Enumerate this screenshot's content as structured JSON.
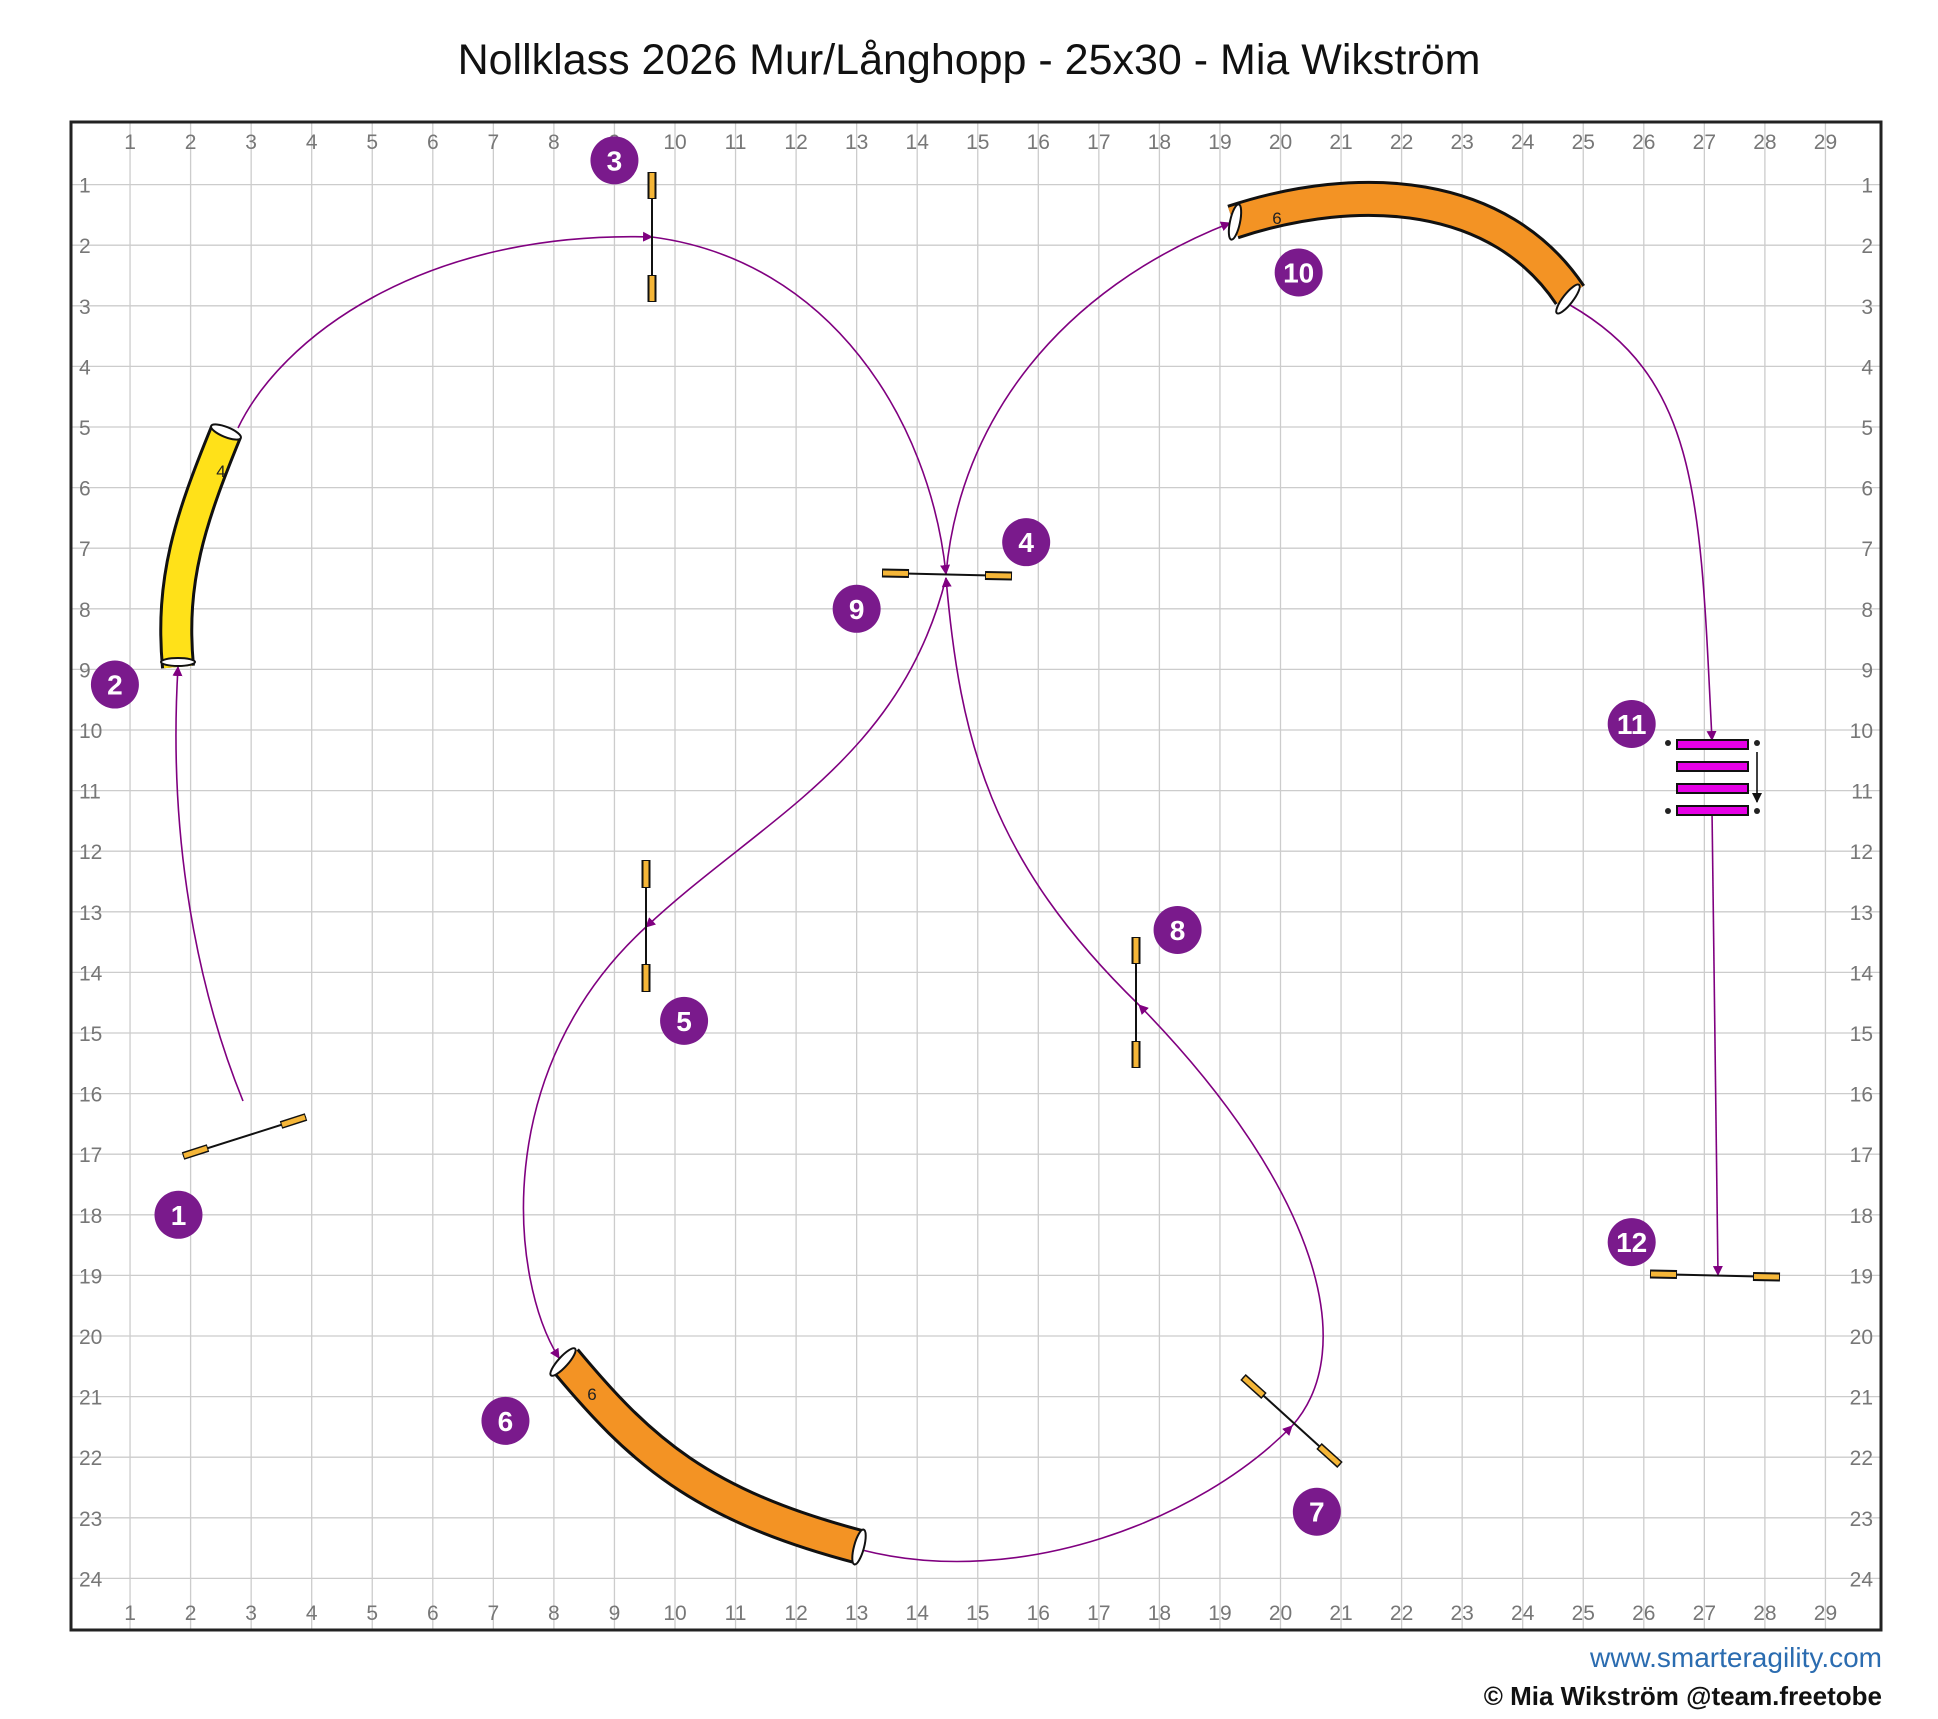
{
  "title": "Nollklass 2026 Mur/Långhopp - 25x30 - Mia Wikström",
  "footer": {
    "website": "www.smarteragility.com",
    "copyright": "© Mia Wikström @team.freetobe"
  },
  "grid": {
    "x_labels": [
      "1",
      "2",
      "3",
      "4",
      "5",
      "6",
      "7",
      "8",
      "9",
      "10",
      "11",
      "12",
      "13",
      "14",
      "15",
      "16",
      "17",
      "18",
      "19",
      "20",
      "21",
      "22",
      "23",
      "24",
      "25",
      "26",
      "27",
      "28",
      "29"
    ],
    "y_labels": [
      "1",
      "2",
      "3",
      "4",
      "5",
      "6",
      "7",
      "8",
      "9",
      "10",
      "11",
      "12",
      "13",
      "14",
      "15",
      "16",
      "17",
      "18",
      "19",
      "20",
      "21",
      "22",
      "23",
      "24"
    ]
  },
  "colors": {
    "path": "#800080",
    "badge": "#7a1a8c",
    "tunnel_yellow": "#ffe119",
    "tunnel_orange": "#f39324",
    "jump_bar": "#f5b638",
    "weave": "#e600e6",
    "grid": "#cccccc"
  },
  "tunnels": [
    {
      "id": "tunnel-2",
      "label": "4",
      "color": "yellow"
    },
    {
      "id": "tunnel-6",
      "label": "6",
      "color": "orange"
    },
    {
      "id": "tunnel-10",
      "label": "6",
      "color": "orange"
    }
  ],
  "numbers": [
    {
      "label": "1",
      "x": 1.8,
      "y": 18.0
    },
    {
      "label": "2",
      "x": 0.75,
      "y": 9.25
    },
    {
      "label": "3",
      "x": 9.0,
      "y": 0.6
    },
    {
      "label": "4",
      "x": 15.8,
      "y": 6.9
    },
    {
      "label": "5",
      "x": 10.15,
      "y": 14.8
    },
    {
      "label": "6",
      "x": 7.2,
      "y": 21.4
    },
    {
      "label": "7",
      "x": 20.6,
      "y": 22.9
    },
    {
      "label": "8",
      "x": 18.3,
      "y": 13.3
    },
    {
      "label": "9",
      "x": 13.0,
      "y": 8.0
    },
    {
      "label": "10",
      "x": 20.3,
      "y": 2.45
    },
    {
      "label": "11",
      "x": 25.8,
      "y": 9.9
    },
    {
      "label": "12",
      "x": 25.8,
      "y": 18.45
    }
  ]
}
